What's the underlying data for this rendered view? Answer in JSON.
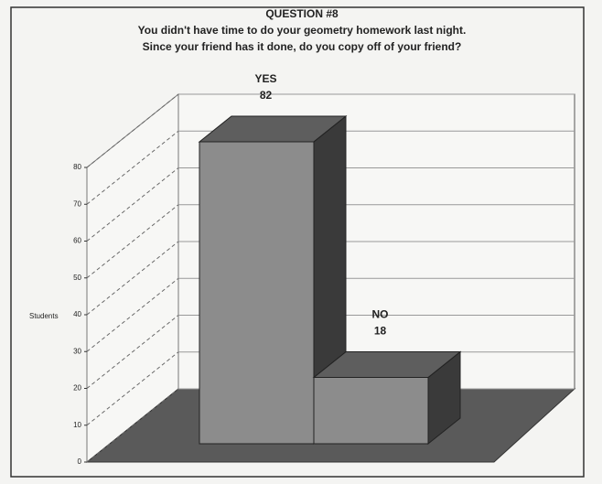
{
  "chart_data": {
    "type": "bar3d",
    "title": "QUESTION #8",
    "subtitle": [
      "You didn't have time to do your geometry homework last night.",
      "Since your friend has it done, do you copy off of your friend?"
    ],
    "y_label": "Students",
    "categories": [
      "YES",
      "NO"
    ],
    "values": [
      82,
      18
    ],
    "color": "#8c8c8c",
    "ylim": [
      0,
      80
    ],
    "yticks": [
      0,
      10,
      20,
      30,
      40,
      50,
      60,
      70,
      80
    ],
    "grid": true
  }
}
